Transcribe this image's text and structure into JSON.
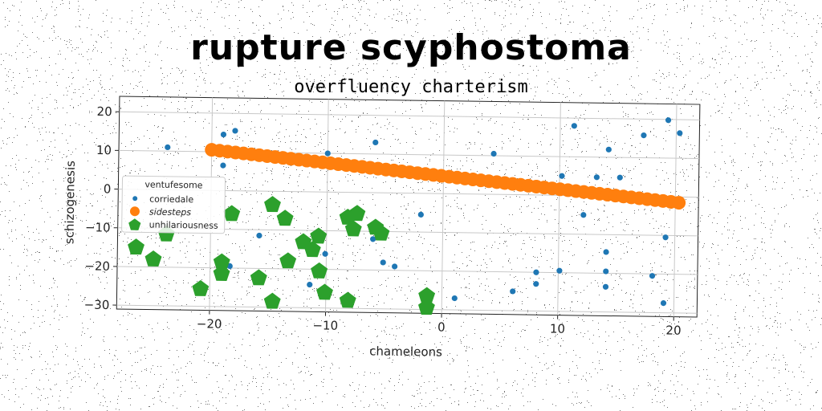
{
  "chart_data": {
    "type": "scatter",
    "title": "rupture scyphostoma",
    "subtitle": "overfluency charterism",
    "xlabel": "chameleons",
    "ylabel": "schizogenesis",
    "xlim": [
      -28,
      22
    ],
    "ylim": [
      -31,
      24
    ],
    "xticks": [
      -20,
      -10,
      0,
      10,
      20
    ],
    "yticks": [
      -30,
      -20,
      -10,
      0,
      10,
      20
    ],
    "grid": true,
    "legend": {
      "title": "ventufesome",
      "placement": "center-left"
    },
    "series": [
      {
        "name": "corriedale",
        "marker": "circle",
        "color": "#1f77b4",
        "points": [
          [
            -23.8,
            11
          ],
          [
            -19,
            14.5
          ],
          [
            -18,
            15.5
          ],
          [
            -19,
            6.5
          ],
          [
            -5.9,
            13
          ],
          [
            -10,
            10
          ],
          [
            4.3,
            10.5
          ],
          [
            11.2,
            18
          ],
          [
            14.2,
            12
          ],
          [
            17.2,
            15.8
          ],
          [
            19.3,
            19.8
          ],
          [
            20.3,
            16.5
          ],
          [
            10.2,
            5
          ],
          [
            13.2,
            4.8
          ],
          [
            15.2,
            4.8
          ],
          [
            12.1,
            -5
          ],
          [
            -1.9,
            -5.5
          ],
          [
            -6,
            -12
          ],
          [
            -15.8,
            -11.5
          ],
          [
            19.2,
            -10.5
          ],
          [
            14.1,
            -14.5
          ],
          [
            -10.1,
            -16
          ],
          [
            -18.3,
            -19.5
          ],
          [
            -5.1,
            -18
          ],
          [
            -4.1,
            -19
          ],
          [
            8.1,
            -20
          ],
          [
            10.1,
            -19.5
          ],
          [
            14.1,
            -19.5
          ],
          [
            18.1,
            -20.5
          ],
          [
            -11.4,
            -24
          ],
          [
            6.1,
            -25
          ],
          [
            8.1,
            -23
          ],
          [
            14.1,
            -23.5
          ],
          [
            1.1,
            -27
          ],
          [
            19.1,
            -27.5
          ]
        ]
      },
      {
        "name": "sidesteps",
        "marker": "circle",
        "color": "#ff7f0e",
        "line": {
          "x_start": -20,
          "x_end": 20.3,
          "y_start": 10.5,
          "y_end": -1.5,
          "n_points": 60
        }
      },
      {
        "name": "unhilariousness",
        "marker": "pentagon",
        "color": "#2ca02c",
        "points": [
          [
            -14.7,
            -3.5
          ],
          [
            -13.6,
            -7
          ],
          [
            -18.2,
            -6
          ],
          [
            -23.8,
            -11.5
          ],
          [
            -26.4,
            -15
          ],
          [
            -24.9,
            -18
          ],
          [
            -19,
            -18.5
          ],
          [
            -19,
            -21.5
          ],
          [
            -12,
            -13
          ],
          [
            -11.2,
            -15
          ],
          [
            -10.7,
            -11.5
          ],
          [
            -8.2,
            -6.5
          ],
          [
            -7.4,
            -5.5
          ],
          [
            -7.7,
            -9.5
          ],
          [
            -5.8,
            -9
          ],
          [
            -5.3,
            -10.5
          ],
          [
            -13.3,
            -18
          ],
          [
            -15.8,
            -22.5
          ],
          [
            -10.6,
            -20.5
          ],
          [
            -10.1,
            -26
          ],
          [
            -8.1,
            -28
          ],
          [
            -14.6,
            -28.5
          ],
          [
            -20.8,
            -25.5
          ],
          [
            -1.3,
            -26.5
          ],
          [
            -1.3,
            -29.5
          ]
        ]
      }
    ]
  }
}
